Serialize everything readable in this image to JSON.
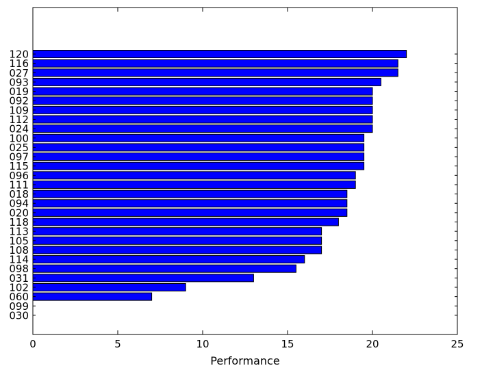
{
  "chart_data": {
    "type": "bar",
    "orientation": "horizontal",
    "categories": [
      "120",
      "116",
      "027",
      "093",
      "019",
      "092",
      "109",
      "112",
      "024",
      "100",
      "025",
      "097",
      "115",
      "096",
      "111",
      "018",
      "094",
      "020",
      "118",
      "113",
      "105",
      "108",
      "114",
      "098",
      "031",
      "102",
      "060",
      "099",
      "030"
    ],
    "values": [
      22,
      21.5,
      21.5,
      20.5,
      20,
      20,
      20,
      20,
      20,
      19.5,
      19.5,
      19.5,
      19.5,
      19,
      19,
      18.5,
      18.5,
      18.5,
      18,
      17,
      17,
      17,
      16,
      15.5,
      13,
      9,
      7,
      0,
      0
    ],
    "title": "",
    "xlabel": "Performance",
    "ylabel": "",
    "xlim": [
      0,
      25
    ],
    "xticks": [
      0,
      5,
      10,
      15,
      20,
      25
    ],
    "bar_color": "#0000ff",
    "edge_color": "#000000",
    "grid": false,
    "legend": "none"
  }
}
